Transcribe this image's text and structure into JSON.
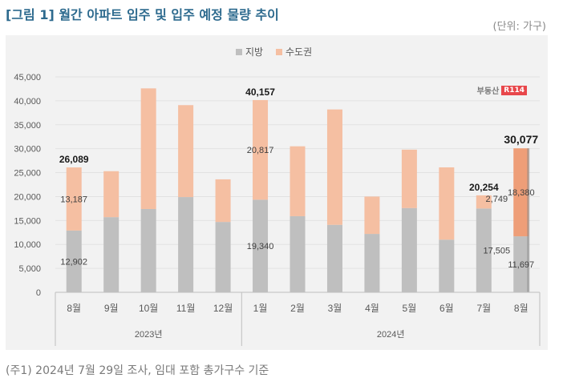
{
  "header": {
    "title": "[그림 1] 월간 아파트 입주 및 입주 예정 물량 추이",
    "unit": "(단위: 가구)"
  },
  "logo": {
    "text": "부동산",
    "badge": "R114"
  },
  "footnote": "(주1) 2024년 7월 29일 조사, 임대 포함 총가구수 기준",
  "colors": {
    "local": "#bfbfbf",
    "capital": "#f5bfa2",
    "capital_highlight": "#ee9e78",
    "grid": "#e2e2e2"
  },
  "chart_data": {
    "type": "bar",
    "stacked": true,
    "legend": [
      "지방",
      "수도권"
    ],
    "legend_position": "top-center",
    "ylim": [
      0,
      45000
    ],
    "yticks": [
      0,
      5000,
      10000,
      15000,
      20000,
      25000,
      30000,
      35000,
      40000,
      45000
    ],
    "ytick_labels": [
      "0",
      "5,000",
      "10,000",
      "15,000",
      "20,000",
      "25,000",
      "30,000",
      "35,000",
      "40,000",
      "45,000"
    ],
    "grid": true,
    "categories": [
      "8월",
      "9월",
      "10월",
      "11월",
      "12월",
      "1월",
      "2월",
      "3월",
      "4월",
      "5월",
      "6월",
      "7월",
      "8월"
    ],
    "groups": [
      {
        "label": "2023년",
        "count": 5
      },
      {
        "label": "2024년",
        "count": 8
      }
    ],
    "series": [
      {
        "name": "지방",
        "values": [
          12902,
          15700,
          17400,
          19900,
          14700,
          19340,
          15900,
          14100,
          12200,
          17600,
          11000,
          17505,
          11697
        ]
      },
      {
        "name": "수도권",
        "values": [
          13187,
          9600,
          25200,
          19200,
          8900,
          20817,
          14600,
          24100,
          7800,
          12200,
          15100,
          2749,
          18380
        ]
      }
    ],
    "totals": [
      26089,
      25300,
      42600,
      39100,
      23600,
      40157,
      30500,
      38200,
      20000,
      29800,
      26100,
      20254,
      30077
    ],
    "labels": [
      {
        "index": 0,
        "total": "26,089",
        "local": "12,902",
        "capital": "13,187"
      },
      {
        "index": 5,
        "total": "40,157",
        "local": "19,340",
        "capital": "20,817"
      },
      {
        "index": 11,
        "total": "20,254",
        "local": "17,505",
        "capital": "2,749"
      },
      {
        "index": 12,
        "total": "30,077",
        "local": "11,697",
        "capital": "18,380"
      }
    ],
    "highlight_index": 12
  }
}
